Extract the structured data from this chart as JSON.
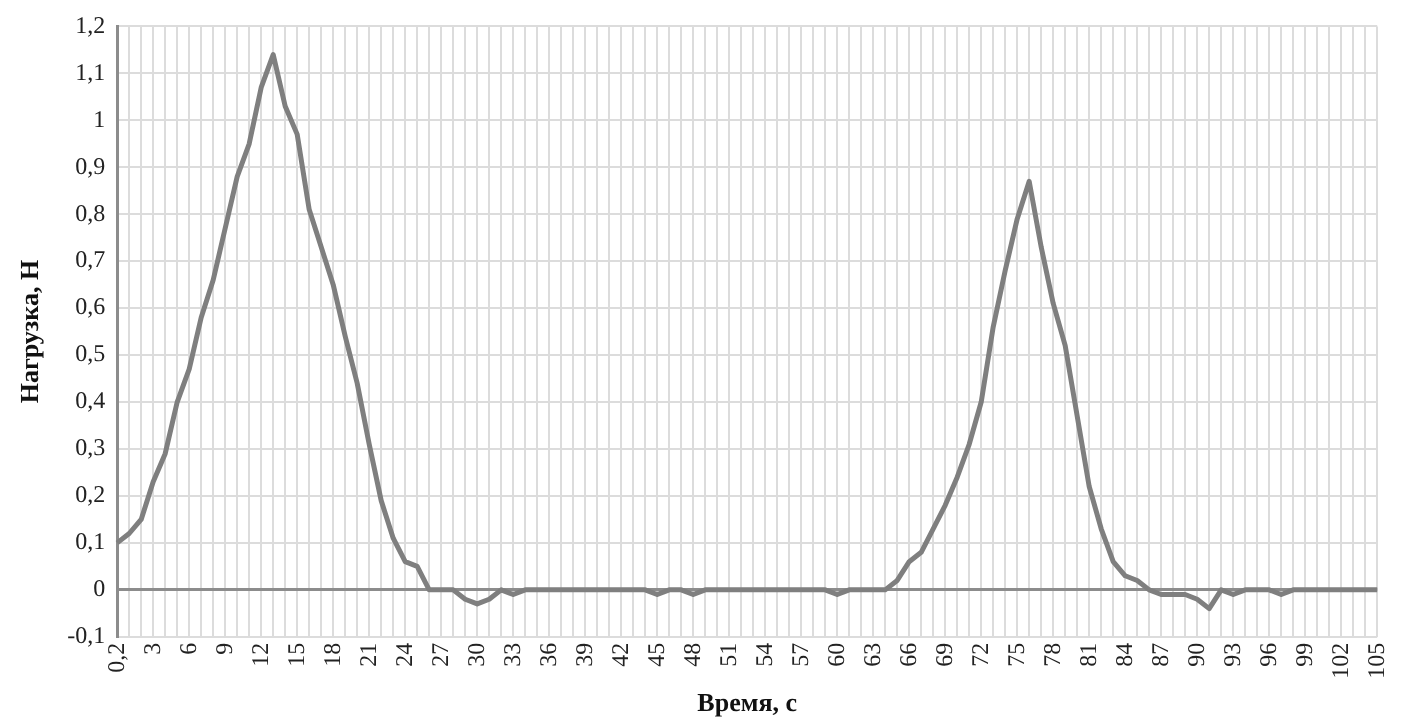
{
  "chart_data": {
    "type": "line",
    "xlabel": "Время, с",
    "ylabel": "Нагрузка, Н",
    "categories": [
      "0,2",
      null,
      null,
      "3",
      null,
      null,
      "6",
      null,
      null,
      "9",
      null,
      null,
      "12",
      null,
      null,
      "15",
      null,
      null,
      "18",
      null,
      null,
      "21",
      null,
      null,
      "24",
      null,
      null,
      "27",
      null,
      null,
      "30",
      null,
      null,
      "33",
      null,
      null,
      "36",
      null,
      null,
      "39",
      null,
      null,
      "42",
      null,
      null,
      "45",
      null,
      null,
      "48",
      null,
      null,
      "51",
      null,
      null,
      "54",
      null,
      null,
      "57",
      null,
      null,
      "60",
      null,
      null,
      "63",
      null,
      null,
      "66",
      null,
      null,
      "69",
      null,
      null,
      "72",
      null,
      null,
      "75",
      null,
      null,
      "78",
      null,
      null,
      "81",
      null,
      null,
      "84",
      null,
      null,
      "87",
      null,
      null,
      "90",
      null,
      null,
      "93",
      null,
      null,
      "96",
      null,
      null,
      "99",
      null,
      null,
      "102",
      null,
      null,
      "105"
    ],
    "series": [
      {
        "color": "#7f7f7f",
        "values": [
          0.1,
          0.12,
          0.15,
          0.23,
          0.29,
          0.4,
          0.47,
          0.58,
          0.66,
          0.77,
          0.88,
          0.95,
          1.07,
          1.14,
          1.03,
          0.97,
          0.81,
          0.73,
          0.65,
          0.54,
          0.44,
          0.31,
          0.19,
          0.11,
          0.06,
          0.05,
          0,
          0,
          0,
          -0.02,
          -0.03,
          -0.02,
          0,
          -0.01,
          0,
          0,
          0,
          0,
          0,
          0,
          0,
          0,
          0,
          0,
          0,
          -0.01,
          0,
          0,
          -0.01,
          0,
          0,
          0,
          0,
          0,
          0,
          0,
          0,
          0,
          0,
          0,
          -0.01,
          0,
          0,
          0,
          0,
          0.02,
          0.06,
          0.08,
          0.13,
          0.18,
          0.24,
          0.31,
          0.4,
          0.56,
          0.68,
          0.79,
          0.87,
          0.73,
          0.61,
          0.52,
          0.37,
          0.22,
          0.13,
          0.06,
          0.03,
          0.02,
          0,
          -0.01,
          -0.01,
          -0.01,
          -0.02,
          -0.04,
          0,
          -0.01,
          0,
          0,
          0,
          -0.01,
          0,
          0,
          0,
          0,
          0,
          0,
          0,
          0
        ]
      }
    ],
    "ylim": [
      -0.1,
      1.2
    ],
    "yticks": [
      {
        "value": -0.1,
        "label": "-0,1"
      },
      {
        "value": 0,
        "label": "0"
      },
      {
        "value": 0.1,
        "label": "0,1"
      },
      {
        "value": 0.2,
        "label": "0,2"
      },
      {
        "value": 0.3,
        "label": "0,3"
      },
      {
        "value": 0.4,
        "label": "0,4"
      },
      {
        "value": 0.5,
        "label": "0,5"
      },
      {
        "value": 0.6,
        "label": "0,6"
      },
      {
        "value": 0.7,
        "label": "0,7"
      },
      {
        "value": 0.8,
        "label": "0,8"
      },
      {
        "value": 0.9,
        "label": "0,9"
      },
      {
        "value": 1,
        "label": "1"
      },
      {
        "value": 1.1,
        "label": "1,1"
      },
      {
        "value": 1.2,
        "label": "1,2"
      }
    ],
    "grid": true,
    "marker": "none",
    "line_style": "solid"
  }
}
